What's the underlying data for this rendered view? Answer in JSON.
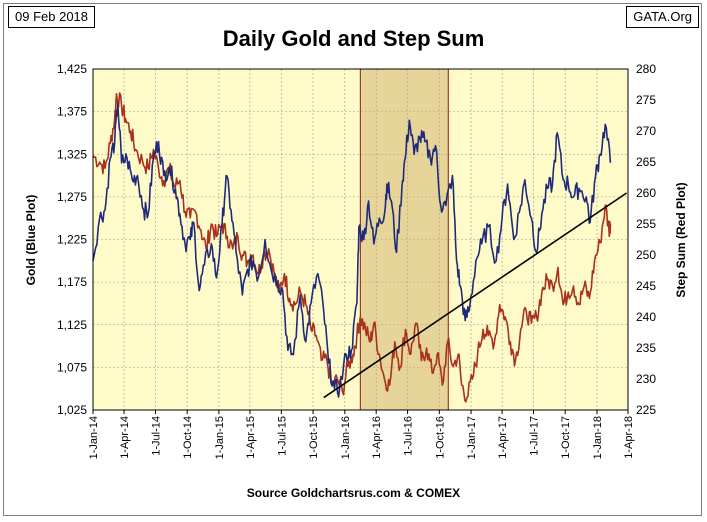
{
  "header": {
    "date": "09 Feb 2018",
    "source_tag": "GATA.Org",
    "title": "Daily Gold and Step Sum"
  },
  "footer": {
    "source": "Source Goldchartsrus.com & COMEX"
  },
  "colors": {
    "plot_bg": "#FFFBC9",
    "gold_line": "#1F2A7A",
    "step_sum_line": "#A8321E",
    "trend_line": "#000000",
    "highlight_fill": "#C8A560",
    "highlight_border": "#8B1A1A"
  },
  "chart_data": {
    "type": "line",
    "title": "Daily Gold and Step Sum",
    "xlabel": "",
    "ylabel": "Gold (Blue Plot)",
    "y2label": "Step Sum (Red Plot)",
    "x_ticks": [
      "1-Jan-14",
      "1-Apr-14",
      "1-Jul-14",
      "1-Oct-14",
      "1-Jan-15",
      "1-Apr-15",
      "1-Jul-15",
      "1-Oct-15",
      "1-Jan-16",
      "1-Apr-16",
      "1-Jul-16",
      "1-Oct-16",
      "1-Jan-17",
      "1-Apr-17",
      "1-Jul-17",
      "1-Oct-17",
      "1-Jan-18",
      "1-Apr-18"
    ],
    "ylim": [
      1025,
      1425
    ],
    "y_ticks": [
      "1,025",
      "1,075",
      "1,125",
      "1,175",
      "1,225",
      "1,275",
      "1,325",
      "1,375",
      "1,425"
    ],
    "y2lim": [
      225,
      280
    ],
    "y2_ticks": [
      "225",
      "230",
      "235",
      "240",
      "245",
      "250",
      "255",
      "260",
      "265",
      "270",
      "275",
      "280"
    ],
    "grid": true,
    "series": [
      {
        "name": "Gold (Blue Plot)",
        "axis": "left",
        "points": [
          [
            "2014-01-01",
            1200
          ],
          [
            "2014-01-20",
            1250
          ],
          [
            "2014-02-05",
            1260
          ],
          [
            "2014-02-20",
            1320
          ],
          [
            "2014-03-05",
            1340
          ],
          [
            "2014-03-14",
            1385
          ],
          [
            "2014-03-25",
            1315
          ],
          [
            "2014-04-10",
            1320
          ],
          [
            "2014-04-25",
            1295
          ],
          [
            "2014-05-10",
            1300
          ],
          [
            "2014-05-28",
            1260
          ],
          [
            "2014-06-10",
            1255
          ],
          [
            "2014-06-25",
            1320
          ],
          [
            "2014-07-10",
            1340
          ],
          [
            "2014-07-25",
            1300
          ],
          [
            "2014-08-10",
            1310
          ],
          [
            "2014-08-28",
            1285
          ],
          [
            "2014-09-10",
            1255
          ],
          [
            "2014-09-25",
            1220
          ],
          [
            "2014-10-10",
            1225
          ],
          [
            "2014-10-20",
            1245
          ],
          [
            "2014-11-05",
            1165
          ],
          [
            "2014-11-20",
            1195
          ],
          [
            "2014-12-10",
            1220
          ],
          [
            "2014-12-25",
            1180
          ],
          [
            "2015-01-10",
            1240
          ],
          [
            "2015-01-22",
            1300
          ],
          [
            "2015-02-05",
            1260
          ],
          [
            "2015-02-20",
            1210
          ],
          [
            "2015-03-10",
            1160
          ],
          [
            "2015-03-25",
            1190
          ],
          [
            "2015-04-10",
            1200
          ],
          [
            "2015-04-25",
            1180
          ],
          [
            "2015-05-15",
            1225
          ],
          [
            "2015-06-01",
            1190
          ],
          [
            "2015-06-20",
            1175
          ],
          [
            "2015-07-05",
            1165
          ],
          [
            "2015-07-20",
            1095
          ],
          [
            "2015-08-05",
            1090
          ],
          [
            "2015-08-25",
            1160
          ],
          [
            "2015-09-10",
            1105
          ],
          [
            "2015-09-25",
            1150
          ],
          [
            "2015-10-15",
            1185
          ],
          [
            "2015-11-01",
            1140
          ],
          [
            "2015-11-15",
            1080
          ],
          [
            "2015-12-02",
            1050
          ],
          [
            "2015-12-17",
            1050
          ],
          [
            "2016-01-05",
            1090
          ],
          [
            "2016-01-20",
            1095
          ],
          [
            "2016-02-05",
            1150
          ],
          [
            "2016-02-11",
            1240
          ],
          [
            "2016-02-25",
            1225
          ],
          [
            "2016-03-10",
            1270
          ],
          [
            "2016-03-25",
            1220
          ],
          [
            "2016-04-10",
            1250
          ],
          [
            "2016-04-25",
            1255
          ],
          [
            "2016-05-02",
            1290
          ],
          [
            "2016-05-15",
            1270
          ],
          [
            "2016-05-30",
            1210
          ],
          [
            "2016-06-15",
            1290
          ],
          [
            "2016-06-24",
            1320
          ],
          [
            "2016-07-06",
            1365
          ],
          [
            "2016-07-20",
            1325
          ],
          [
            "2016-08-05",
            1345
          ],
          [
            "2016-08-20",
            1340
          ],
          [
            "2016-09-05",
            1320
          ],
          [
            "2016-09-20",
            1335
          ],
          [
            "2016-10-05",
            1265
          ],
          [
            "2016-10-20",
            1265
          ],
          [
            "2016-11-08",
            1300
          ],
          [
            "2016-11-20",
            1200
          ],
          [
            "2016-12-01",
            1170
          ],
          [
            "2016-12-15",
            1130
          ],
          [
            "2016-12-28",
            1145
          ],
          [
            "2017-01-15",
            1200
          ],
          [
            "2017-02-01",
            1220
          ],
          [
            "2017-02-20",
            1240
          ],
          [
            "2017-03-15",
            1200
          ],
          [
            "2017-04-01",
            1250
          ],
          [
            "2017-04-17",
            1290
          ],
          [
            "2017-05-05",
            1225
          ],
          [
            "2017-05-25",
            1265
          ],
          [
            "2017-06-06",
            1295
          ],
          [
            "2017-06-25",
            1250
          ],
          [
            "2017-07-10",
            1210
          ],
          [
            "2017-07-25",
            1255
          ],
          [
            "2017-08-10",
            1285
          ],
          [
            "2017-08-25",
            1290
          ],
          [
            "2017-09-08",
            1350
          ],
          [
            "2017-09-25",
            1295
          ],
          [
            "2017-10-10",
            1290
          ],
          [
            "2017-10-25",
            1275
          ],
          [
            "2017-11-10",
            1285
          ],
          [
            "2017-12-01",
            1275
          ],
          [
            "2017-12-12",
            1245
          ],
          [
            "2017-12-28",
            1300
          ],
          [
            "2018-01-10",
            1325
          ],
          [
            "2018-01-25",
            1360
          ],
          [
            "2018-02-09",
            1315
          ]
        ]
      },
      {
        "name": "Step Sum (Red Plot)",
        "axis": "right",
        "points": [
          [
            "2014-01-01",
            266
          ],
          [
            "2014-01-20",
            265
          ],
          [
            "2014-02-05",
            264
          ],
          [
            "2014-02-20",
            268
          ],
          [
            "2014-03-05",
            272
          ],
          [
            "2014-03-10",
            276
          ],
          [
            "2014-03-25",
            274
          ],
          [
            "2014-04-05",
            272
          ],
          [
            "2014-04-20",
            270
          ],
          [
            "2014-05-05",
            267
          ],
          [
            "2014-05-25",
            265
          ],
          [
            "2014-06-10",
            264
          ],
          [
            "2014-06-25",
            267
          ],
          [
            "2014-07-10",
            264
          ],
          [
            "2014-07-25",
            262
          ],
          [
            "2014-08-10",
            264
          ],
          [
            "2014-08-25",
            261
          ],
          [
            "2014-09-10",
            262
          ],
          [
            "2014-09-25",
            257
          ],
          [
            "2014-10-10",
            256
          ],
          [
            "2014-10-25",
            257
          ],
          [
            "2014-11-10",
            254
          ],
          [
            "2014-11-25",
            251
          ],
          [
            "2014-12-10",
            255
          ],
          [
            "2014-12-25",
            253
          ],
          [
            "2015-01-10",
            255
          ],
          [
            "2015-01-25",
            253
          ],
          [
            "2015-02-10",
            251
          ],
          [
            "2015-02-25",
            253
          ],
          [
            "2015-03-10",
            250
          ],
          [
            "2015-03-25",
            249
          ],
          [
            "2015-04-10",
            250
          ],
          [
            "2015-04-25",
            247
          ],
          [
            "2015-05-10",
            250
          ],
          [
            "2015-05-25",
            251
          ],
          [
            "2015-06-10",
            247
          ],
          [
            "2015-06-25",
            244
          ],
          [
            "2015-07-10",
            247
          ],
          [
            "2015-07-25",
            243
          ],
          [
            "2015-08-10",
            242
          ],
          [
            "2015-08-25",
            244
          ],
          [
            "2015-09-10",
            242
          ],
          [
            "2015-09-25",
            238
          ],
          [
            "2015-10-10",
            237
          ],
          [
            "2015-10-25",
            233
          ],
          [
            "2015-11-10",
            233
          ],
          [
            "2015-11-25",
            229
          ],
          [
            "2015-12-10",
            230
          ],
          [
            "2015-12-25",
            228
          ],
          [
            "2016-01-10",
            232
          ],
          [
            "2016-01-25",
            234
          ],
          [
            "2016-02-05",
            237
          ],
          [
            "2016-02-15",
            240
          ],
          [
            "2016-03-01",
            238
          ],
          [
            "2016-03-15",
            236
          ],
          [
            "2016-03-25",
            239
          ],
          [
            "2016-04-10",
            234
          ],
          [
            "2016-04-25",
            230
          ],
          [
            "2016-05-10",
            229
          ],
          [
            "2016-05-25",
            236
          ],
          [
            "2016-06-10",
            232
          ],
          [
            "2016-06-25",
            238
          ],
          [
            "2016-07-10",
            234
          ],
          [
            "2016-07-25",
            239
          ],
          [
            "2016-08-10",
            233
          ],
          [
            "2016-08-25",
            235
          ],
          [
            "2016-09-10",
            231
          ],
          [
            "2016-09-25",
            234
          ],
          [
            "2016-10-10",
            229
          ],
          [
            "2016-10-25",
            236
          ],
          [
            "2016-11-10",
            232
          ],
          [
            "2016-11-25",
            234
          ],
          [
            "2016-12-05",
            229
          ],
          [
            "2016-12-20",
            227
          ],
          [
            "2017-01-05",
            230
          ],
          [
            "2017-01-20",
            234
          ],
          [
            "2017-02-05",
            238
          ],
          [
            "2017-02-20",
            237
          ],
          [
            "2017-03-10",
            236
          ],
          [
            "2017-03-25",
            242
          ],
          [
            "2017-04-10",
            240
          ],
          [
            "2017-04-25",
            236
          ],
          [
            "2017-05-10",
            233
          ],
          [
            "2017-05-25",
            238
          ],
          [
            "2017-06-10",
            241
          ],
          [
            "2017-06-25",
            239
          ],
          [
            "2017-07-10",
            240
          ],
          [
            "2017-07-25",
            244
          ],
          [
            "2017-08-10",
            246
          ],
          [
            "2017-08-25",
            245
          ],
          [
            "2017-09-10",
            248
          ],
          [
            "2017-09-25",
            242
          ],
          [
            "2017-10-10",
            244
          ],
          [
            "2017-10-25",
            245
          ],
          [
            "2017-11-10",
            242
          ],
          [
            "2017-11-25",
            245
          ],
          [
            "2017-12-10",
            243
          ],
          [
            "2017-12-25",
            249
          ],
          [
            "2018-01-10",
            252
          ],
          [
            "2018-01-25",
            258
          ],
          [
            "2018-02-05",
            254
          ],
          [
            "2018-02-09",
            255
          ]
        ]
      }
    ],
    "trend_line": {
      "axis": "right",
      "points": [
        [
          "2015-11-01",
          227
        ],
        [
          "2018-03-28",
          260
        ]
      ]
    },
    "highlight_span": [
      "2016-02-15",
      "2016-10-27"
    ]
  }
}
